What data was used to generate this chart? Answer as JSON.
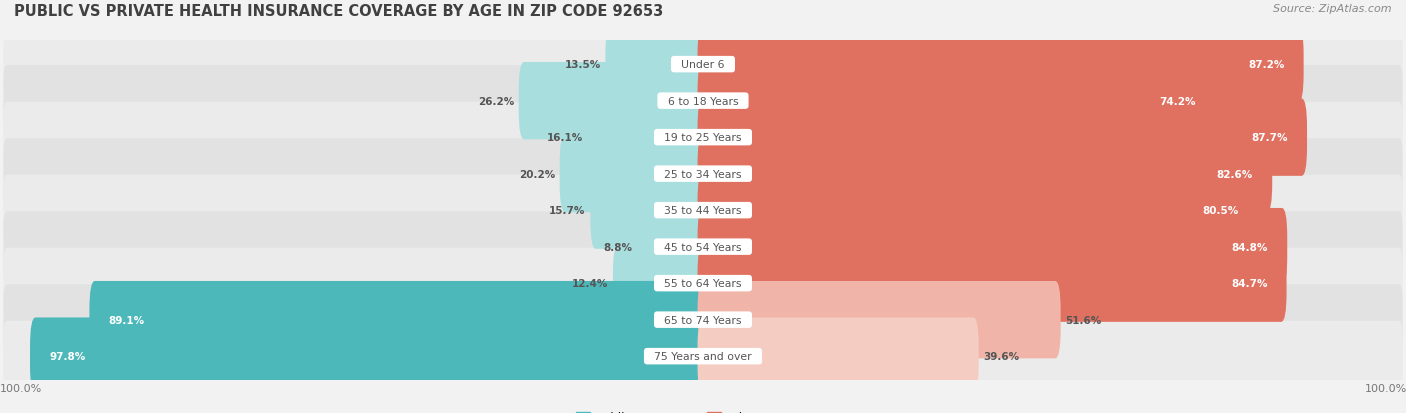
{
  "title": "PUBLIC VS PRIVATE HEALTH INSURANCE COVERAGE BY AGE IN ZIP CODE 92653",
  "source": "Source: ZipAtlas.com",
  "categories": [
    "Under 6",
    "6 to 18 Years",
    "19 to 25 Years",
    "25 to 34 Years",
    "35 to 44 Years",
    "45 to 54 Years",
    "55 to 64 Years",
    "65 to 74 Years",
    "75 Years and over"
  ],
  "public": [
    13.5,
    26.2,
    16.1,
    20.2,
    15.7,
    8.8,
    12.4,
    89.1,
    97.8
  ],
  "private": [
    87.2,
    74.2,
    87.7,
    82.6,
    80.5,
    84.8,
    84.7,
    51.6,
    39.6
  ],
  "public_color_strong": "#4db8ba",
  "public_color_medium": "#6ecbcc",
  "public_color_light": "#a8dede",
  "private_color_strong": "#e07060",
  "private_color_medium": "#e88878",
  "private_color_light": "#f0b5a8",
  "private_color_vlight": "#f5ccc2",
  "bg_color": "#f2f2f2",
  "row_bg_even": "#ebebeb",
  "row_bg_odd": "#e2e2e2",
  "label_color_dark": "#555555",
  "label_color_white": "#ffffff",
  "axis_label_color": "#777777",
  "source_color": "#888888",
  "title_color": "#404040",
  "legend_public_color": "#4db8ba",
  "legend_private_color": "#e07060",
  "max_val": 100.0,
  "figsize": [
    14.06,
    4.14
  ],
  "dpi": 100
}
